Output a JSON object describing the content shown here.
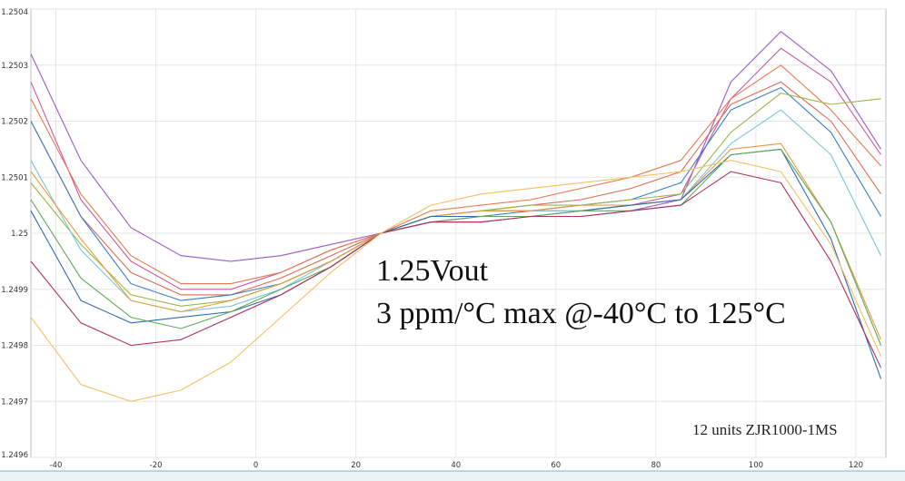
{
  "chart_data": {
    "type": "line",
    "title": "",
    "xlabel": "",
    "ylabel": "",
    "xlim": [
      -45,
      126
    ],
    "ylim": [
      1.2496,
      1.2504
    ],
    "grid": true,
    "x_ticks": [
      "-40",
      "-20",
      "0",
      "20",
      "40",
      "60",
      "80",
      "100",
      "120"
    ],
    "y_ticks": [
      "1.2496",
      "1.2497",
      "1.2498",
      "1.2499",
      "1.25",
      "1.2501",
      "1.2502",
      "1.2503",
      "1.2504"
    ],
    "annotations": {
      "line1": "1.25Vout",
      "line2": "3 ppm/°C max @-40°C to 125°C",
      "units_note": "12 units ZJR1000-1MS"
    },
    "x": [
      -45,
      -35,
      -25,
      -15,
      -5,
      5,
      15,
      25,
      35,
      45,
      55,
      65,
      75,
      85,
      95,
      105,
      115,
      125
    ],
    "series": [
      {
        "color": "#9b59c9",
        "values": [
          1.25032,
          1.25013,
          1.25001,
          1.24996,
          1.24995,
          1.24996,
          1.24998,
          1.25,
          1.25002,
          1.25002,
          1.25003,
          1.25003,
          1.25004,
          1.25006,
          1.25027,
          1.25036,
          1.25029,
          1.25015
        ]
      },
      {
        "color": "#c85a9e",
        "values": [
          1.25027,
          1.25006,
          1.24995,
          1.2499,
          1.2499,
          1.24993,
          1.24997,
          1.25,
          1.25003,
          1.25004,
          1.25004,
          1.25004,
          1.25005,
          1.25007,
          1.25024,
          1.25033,
          1.25027,
          1.25014
        ]
      },
      {
        "color": "#e8784e",
        "values": [
          1.25024,
          1.25007,
          1.24996,
          1.24991,
          1.24991,
          1.24993,
          1.24997,
          1.25,
          1.25004,
          1.25005,
          1.25006,
          1.25008,
          1.2501,
          1.25013,
          1.25024,
          1.2503,
          1.25022,
          1.25012
        ]
      },
      {
        "color": "#e06a50",
        "values": [
          1.2502,
          1.25003,
          1.24993,
          1.24989,
          1.24989,
          1.24992,
          1.24996,
          1.25,
          1.25003,
          1.25004,
          1.25005,
          1.25006,
          1.25008,
          1.25011,
          1.25023,
          1.25027,
          1.2502,
          1.25007
        ]
      },
      {
        "color": "#3a7ec8",
        "values": [
          1.2502,
          1.25003,
          1.24991,
          1.24988,
          1.24989,
          1.24991,
          1.24995,
          1.25,
          1.25002,
          1.25003,
          1.25004,
          1.25005,
          1.25006,
          1.25009,
          1.25022,
          1.25026,
          1.25018,
          1.25003
        ]
      },
      {
        "color": "#9ab64a",
        "values": [
          1.25009,
          1.24998,
          1.24989,
          1.24987,
          1.24988,
          1.24991,
          1.24995,
          1.25,
          1.25003,
          1.25004,
          1.25005,
          1.25005,
          1.25006,
          1.25007,
          1.25018,
          1.25025,
          1.25023,
          1.25024
        ]
      },
      {
        "color": "#7ac4e0",
        "values": [
          1.25013,
          1.24997,
          1.24988,
          1.24986,
          1.24987,
          1.2499,
          1.24995,
          1.25,
          1.25003,
          1.25004,
          1.25004,
          1.25004,
          1.25005,
          1.25006,
          1.25016,
          1.25022,
          1.25014,
          1.24996
        ]
      },
      {
        "color": "#e89a3c",
        "values": [
          1.25011,
          1.24999,
          1.24988,
          1.24986,
          1.24988,
          1.24991,
          1.24995,
          1.25,
          1.25003,
          1.25004,
          1.25004,
          1.25005,
          1.25005,
          1.25006,
          1.25015,
          1.25016,
          1.25002,
          1.24981
        ]
      },
      {
        "color": "#2f6ab0",
        "values": [
          1.25004,
          1.24988,
          1.24984,
          1.24985,
          1.24986,
          1.24989,
          1.24994,
          1.25,
          1.25003,
          1.25003,
          1.25003,
          1.25004,
          1.25005,
          1.25006,
          1.25014,
          1.25015,
          1.24999,
          1.24974
        ]
      },
      {
        "color": "#5fa85a",
        "values": [
          1.25006,
          1.24992,
          1.24985,
          1.24983,
          1.24986,
          1.2499,
          1.24994,
          1.25,
          1.25002,
          1.25003,
          1.25003,
          1.25004,
          1.25004,
          1.25005,
          1.25014,
          1.25015,
          1.25002,
          1.2498
        ]
      },
      {
        "color": "#b0305a",
        "values": [
          1.24995,
          1.24984,
          1.2498,
          1.24981,
          1.24985,
          1.24989,
          1.24994,
          1.25,
          1.25002,
          1.25002,
          1.25003,
          1.25003,
          1.25004,
          1.25005,
          1.25011,
          1.25009,
          1.24995,
          1.24976
        ]
      },
      {
        "color": "#f4c064",
        "values": [
          1.24985,
          1.24973,
          1.2497,
          1.24972,
          1.24977,
          1.24985,
          1.24993,
          1.25,
          1.25005,
          1.25007,
          1.25008,
          1.25009,
          1.2501,
          1.25011,
          1.25013,
          1.25011,
          1.24998,
          1.24978
        ]
      }
    ]
  }
}
